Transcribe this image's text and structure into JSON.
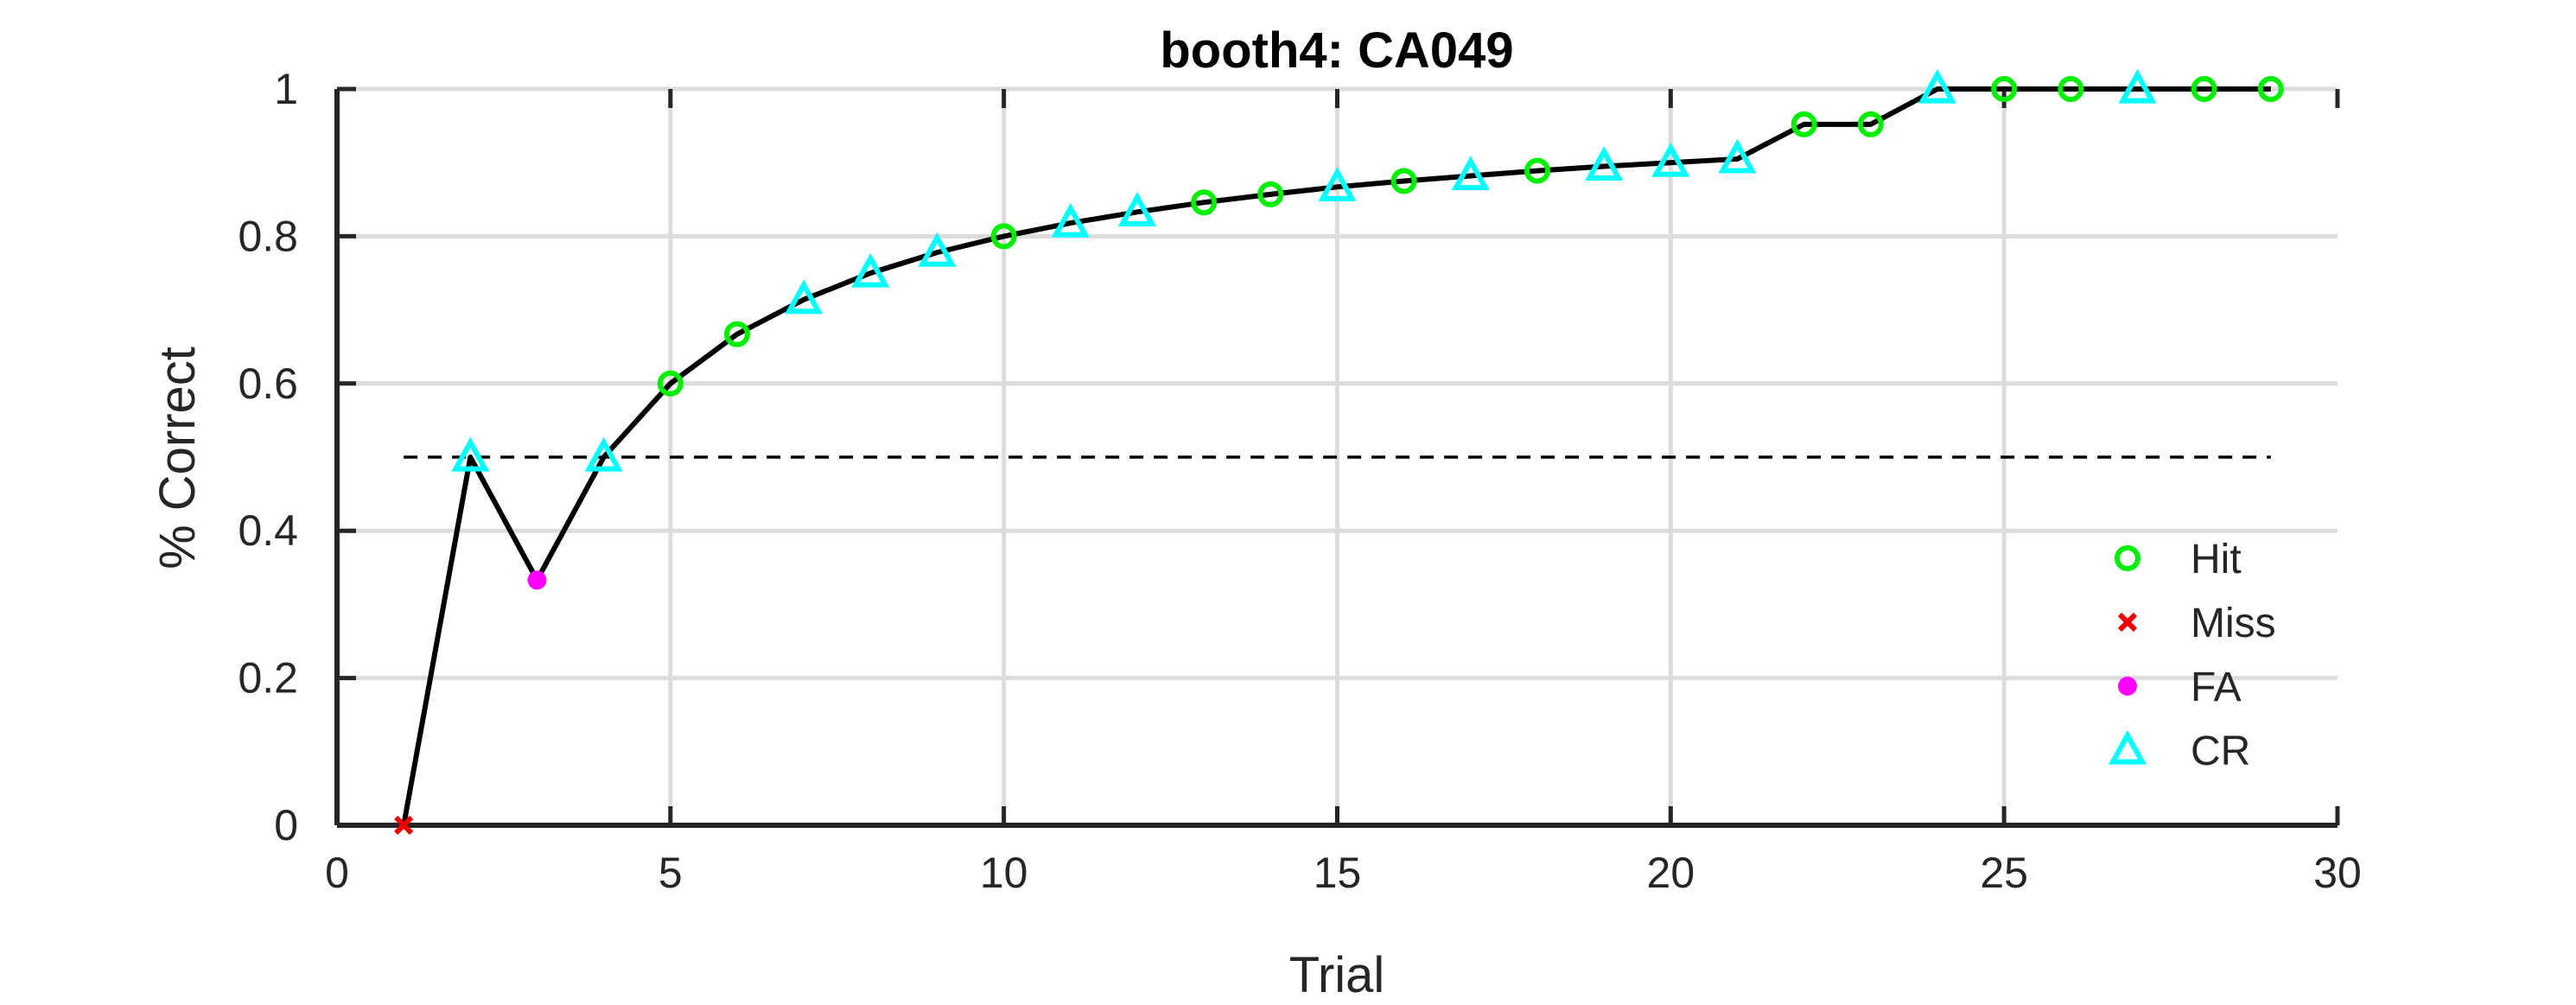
{
  "chart_data": {
    "type": "line",
    "title": "booth4: CA049",
    "xlabel": "Trial",
    "ylabel": "% Correct",
    "xlim": [
      0,
      30
    ],
    "ylim": [
      0,
      1
    ],
    "xticks": [
      0,
      5,
      10,
      15,
      20,
      25,
      30
    ],
    "yticks": [
      0,
      0.2,
      0.4,
      0.6,
      0.8,
      1
    ],
    "xtick_labels": [
      "0",
      "5",
      "10",
      "15",
      "20",
      "25",
      "30"
    ],
    "ytick_labels": [
      "0",
      "0.2",
      "0.4",
      "0.6",
      "0.8",
      "1"
    ],
    "grid": true,
    "legend_position": "bottom-right",
    "reference_line": {
      "y": 0.5,
      "x_start": 1,
      "x_end": 29,
      "style": "dashed",
      "color": "#000000"
    },
    "line_color": "#000000",
    "trials": [
      1,
      2,
      3,
      4,
      5,
      6,
      7,
      8,
      9,
      10,
      11,
      12,
      13,
      14,
      15,
      16,
      17,
      18,
      19,
      20,
      21,
      22,
      23,
      24,
      25,
      26,
      27,
      28,
      29
    ],
    "percent_correct": [
      0,
      0.5,
      0.333,
      0.5,
      0.6,
      0.667,
      0.714,
      0.75,
      0.778,
      0.8,
      0.818,
      0.833,
      0.846,
      0.857,
      0.867,
      0.875,
      0.882,
      0.889,
      0.895,
      0.9,
      0.905,
      0.952,
      0.952,
      1,
      1,
      1,
      1,
      1,
      1
    ],
    "outcomes": [
      "Miss",
      "CR",
      "FA",
      "CR",
      "Hit",
      "Hit",
      "CR",
      "CR",
      "CR",
      "Hit",
      "CR",
      "CR",
      "Hit",
      "Hit",
      "CR",
      "Hit",
      "CR",
      "Hit",
      "CR",
      "CR",
      "CR",
      "Hit",
      "Hit",
      "CR",
      "Hit",
      "Hit",
      "CR",
      "Hit",
      "Hit"
    ],
    "series": [
      {
        "name": "Hit",
        "marker": "circle-open",
        "color": "#00ee00"
      },
      {
        "name": "Miss",
        "marker": "x",
        "color": "#ee0000"
      },
      {
        "name": "FA",
        "marker": "dot",
        "color": "#ff00ff"
      },
      {
        "name": "CR",
        "marker": "triangle-open",
        "color": "#00ffff"
      }
    ]
  }
}
